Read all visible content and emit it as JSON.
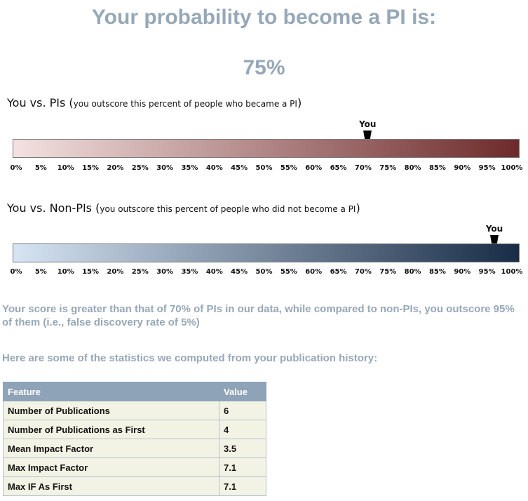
{
  "header": {
    "title": "Your probability to become a PI is:",
    "probability": "75%"
  },
  "gauges": [
    {
      "title": "You vs. PIs (",
      "subtitle": "you outscore this percent of people who became a PI",
      "close": ")",
      "marker_label": "You",
      "marker_percentile": 70,
      "colors": {
        "start": "#f4e1e1",
        "end": "#6d2a2a"
      }
    },
    {
      "title": "You vs. Non-PIs (",
      "subtitle": "you outscore this percent of people who did not become a PI",
      "close": ")",
      "marker_label": "You",
      "marker_percentile": 95,
      "colors": {
        "start": "#d6e4f3",
        "end": "#182c47"
      }
    }
  ],
  "tick_labels": [
    "0%",
    "5%",
    "10%",
    "15%",
    "20%",
    "25%",
    "30%",
    "35%",
    "40%",
    "45%",
    "50%",
    "55%",
    "60%",
    "65%",
    "70%",
    "75%",
    "80%",
    "85%",
    "90%",
    "95%",
    "100%"
  ],
  "summary": "Your score is greater than that of 70% of PIs in our data, while compared to non-PIs, you outscore 95% of them (i.e., false discovery rate of 5%)",
  "stats_intro": "Here are some of the statistics we computed from your publication history:",
  "table": {
    "headers": [
      "Feature",
      "Value"
    ],
    "rows": [
      [
        "Number of Publications",
        "6"
      ],
      [
        "Number of Publications as First",
        "4"
      ],
      [
        "Mean Impact Factor",
        "3.5"
      ],
      [
        "Max Impact Factor",
        "7.1"
      ],
      [
        "Max IF As First",
        "7.1"
      ]
    ]
  },
  "colors": {
    "heading": "#96a8b8",
    "table_header": "#8ea3b7",
    "table_cell": "#f3f3e5"
  }
}
